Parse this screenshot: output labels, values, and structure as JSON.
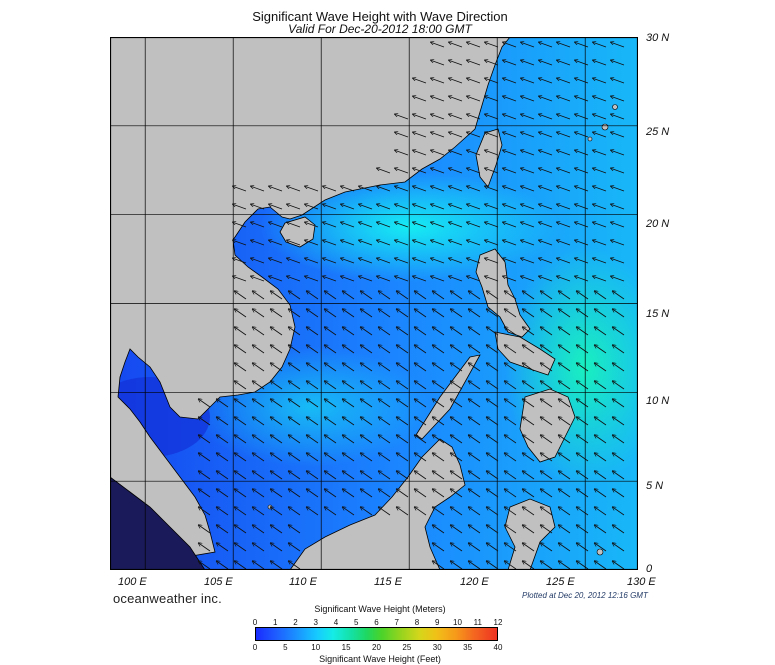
{
  "header": {
    "title": "Significant Wave Height with Wave Direction",
    "subtitle": "Valid For Dec-20-2012 18:00 GMT"
  },
  "map": {
    "latitude_labels": [
      "30 N",
      "25 N",
      "20 N",
      "15 N",
      "10 N",
      "5 N",
      "0"
    ],
    "longitude_labels": [
      "100 E",
      "105 E",
      "110 E",
      "115 E",
      "120 E",
      "125 E",
      "130 E"
    ],
    "lat_range": [
      0,
      30
    ],
    "lon_range": [
      98,
      128
    ],
    "land_color": "#c0c0c0",
    "sea_color": "#1877ff",
    "grid": true,
    "arrow_direction": "towards southwest"
  },
  "footer": {
    "brand": "oceanweather inc.",
    "plotted": "Plotted at Dec 20, 2012 12:16 GMT"
  },
  "legend": {
    "title_meters": "Significant Wave Height (Meters)",
    "title_feet": "Significant Wave Height (Feet)",
    "meters_ticks": [
      "0",
      "1",
      "2",
      "3",
      "4",
      "5",
      "6",
      "7",
      "8",
      "9",
      "10",
      "11",
      "12"
    ],
    "feet_ticks": [
      "0",
      "5",
      "10",
      "15",
      "20",
      "25",
      "30",
      "35",
      "40"
    ]
  }
}
